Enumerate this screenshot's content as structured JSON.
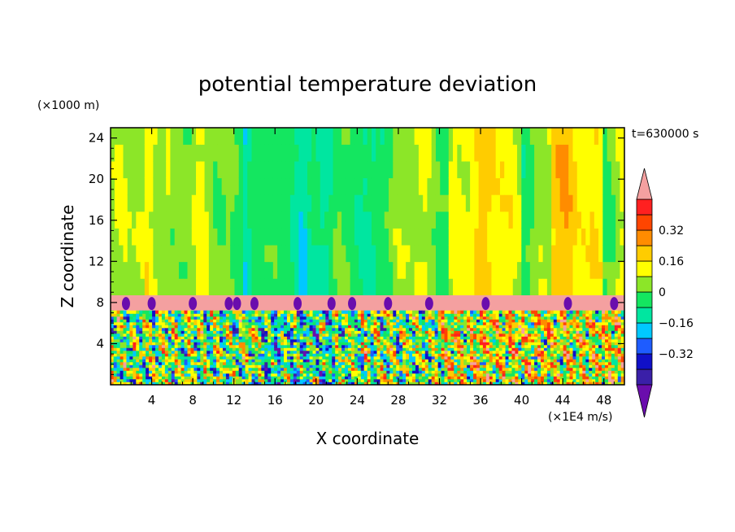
{
  "chart_data": {
    "type": "heatmap",
    "title": "potential temperature deviation",
    "time_label": "t=630000 s",
    "xlabel": "X coordinate",
    "ylabel": "Z coordinate",
    "x_unit": "(×1E4 m/s)",
    "y_unit": "(×1000 m)",
    "xlim": [
      0,
      50
    ],
    "ylim": [
      0,
      25
    ],
    "x_ticks": [
      4,
      8,
      12,
      16,
      20,
      24,
      28,
      32,
      36,
      40,
      44,
      48
    ],
    "y_ticks": [
      4,
      8,
      12,
      16,
      20,
      24
    ],
    "colorbar": {
      "levels": [
        -0.48,
        -0.4,
        -0.32,
        -0.24,
        -0.16,
        -0.08,
        0,
        0.08,
        0.16,
        0.24,
        0.32,
        0.4,
        0.48
      ],
      "labels": [
        "0.32",
        "0.16",
        "0",
        "−0.16",
        "−0.32"
      ],
      "label_values": [
        0.32,
        0.16,
        0,
        -0.16,
        -0.32
      ],
      "colors": [
        "#6a0dad",
        "#3a1fa8",
        "#1010c8",
        "#1e5cff",
        "#00c8ff",
        "#00e6a0",
        "#14e660",
        "#8ce628",
        "#ffff00",
        "#ffcc00",
        "#ff8c00",
        "#ff4500",
        "#ff2020",
        "#f4a0a0"
      ],
      "over_color": "#f4a0a0",
      "under_color": "#6a0dad"
    },
    "layers": [
      {
        "name": "upper",
        "z_range": [
          8.7,
          25
        ],
        "description_values": [
          0,
          0.16
        ]
      },
      {
        "name": "band",
        "z_range": [
          7.2,
          8.7
        ],
        "value": 0.48
      },
      {
        "name": "lower",
        "z_range": [
          0,
          7.2
        ],
        "description_values": [
          -0.48,
          0.48
        ]
      }
    ]
  }
}
